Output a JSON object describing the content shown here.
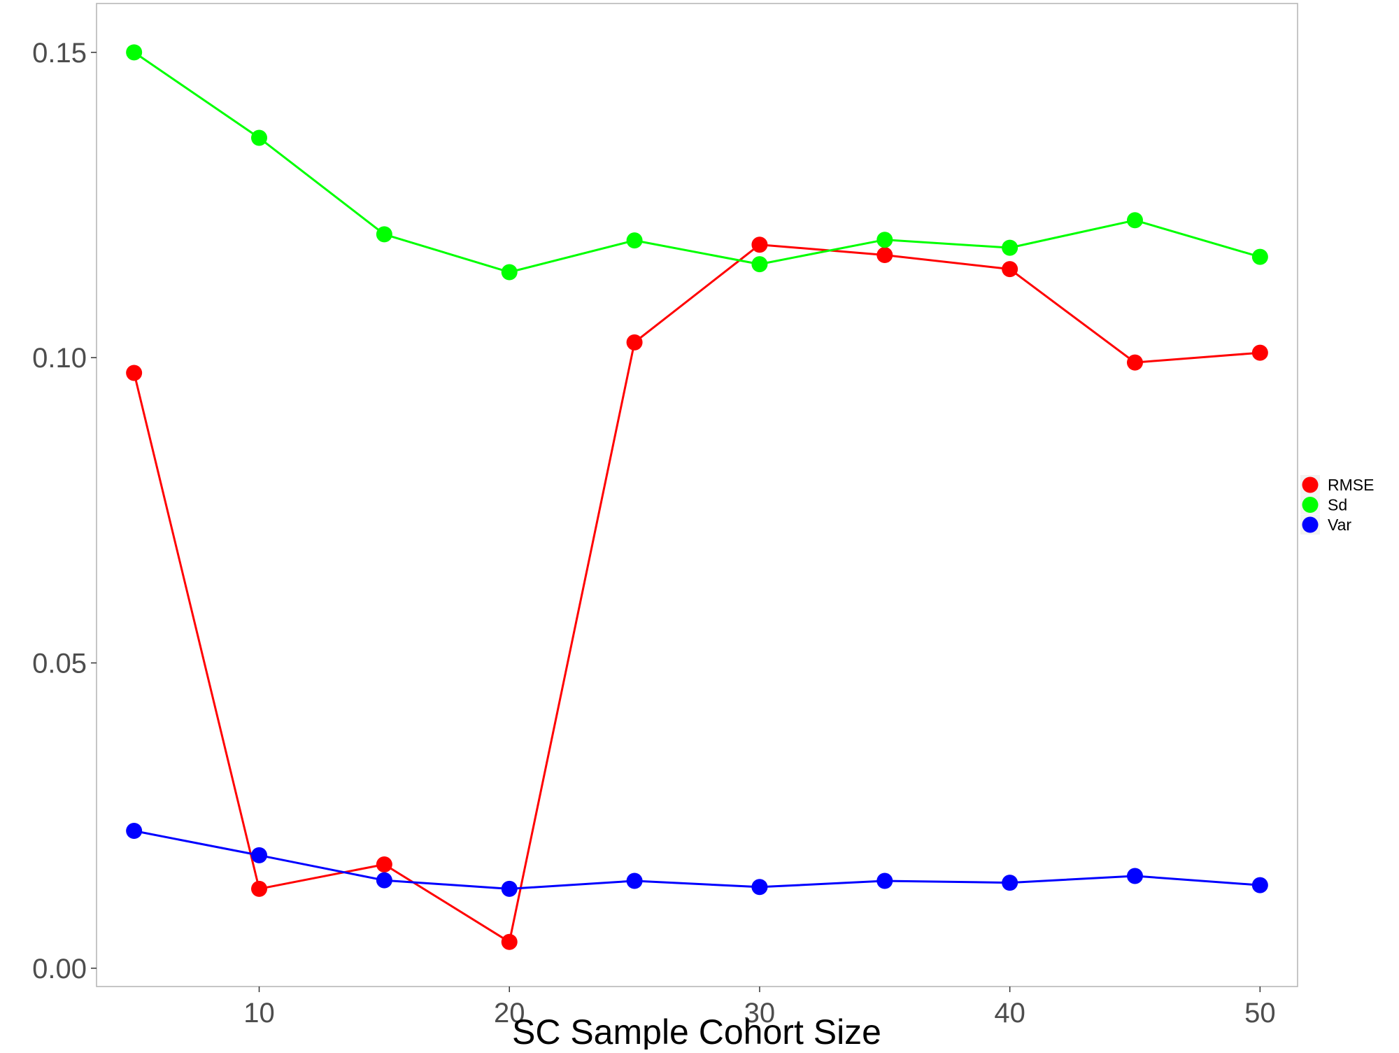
{
  "chart_data": {
    "type": "line",
    "title": "",
    "xlabel": "SC Sample Cohort Size",
    "ylabel": "",
    "xlim": [
      3.5,
      51.5
    ],
    "ylim": [
      -0.003,
      0.158
    ],
    "x_ticks": [
      10,
      20,
      30,
      40,
      50
    ],
    "x_tick_labels": [
      "10",
      "20",
      "30",
      "40",
      "50"
    ],
    "y_ticks": [
      0,
      0.05,
      0.1,
      0.15
    ],
    "y_tick_labels": [
      "0.00",
      "0.05",
      "0.10",
      "0.15"
    ],
    "grid": false,
    "legend_position": "right",
    "x": [
      5,
      10,
      15,
      20,
      25,
      30,
      35,
      40,
      45,
      50
    ],
    "series": [
      {
        "name": "RMSE",
        "color": "#ff0000",
        "values": [
          0.0975,
          0.013,
          0.017,
          0.0043,
          0.1025,
          0.1185,
          0.1168,
          0.1145,
          0.0992,
          0.1008
        ]
      },
      {
        "name": "Sd",
        "color": "#00ff00",
        "values": [
          0.15,
          0.136,
          0.1202,
          0.114,
          0.1192,
          0.1153,
          0.1193,
          0.118,
          0.1225,
          0.1165
        ]
      },
      {
        "name": "Var",
        "color": "#0000ff",
        "values": [
          0.0225,
          0.0185,
          0.0144,
          0.013,
          0.0143,
          0.0133,
          0.0143,
          0.014,
          0.0151,
          0.0136
        ]
      }
    ]
  }
}
